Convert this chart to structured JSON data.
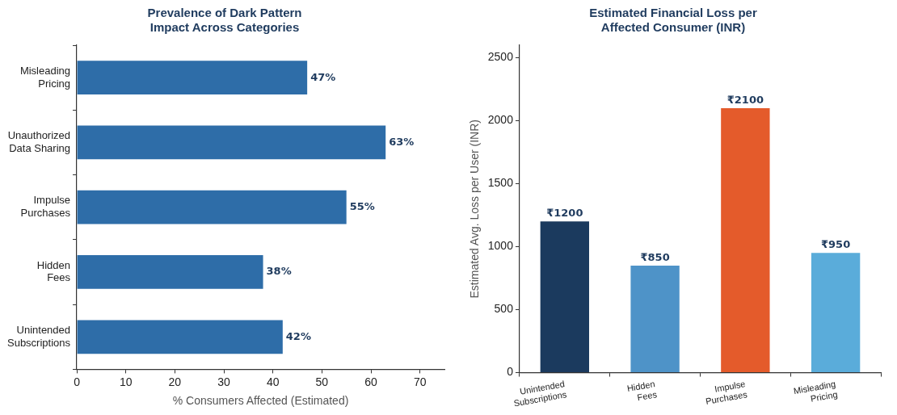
{
  "chart_data": [
    {
      "type": "bar",
      "orientation": "horizontal",
      "title": "Prevalence of Dark Pattern\nImpact Across Categories",
      "xlabel": "% Consumers Affected (Estimated)",
      "categories": [
        "Misleading\nPricing",
        "Unauthorized\nData Sharing",
        "Impulse\nPurchases",
        "Hidden\nFees",
        "Unintended\nSubscriptions"
      ],
      "values": [
        47,
        63,
        55,
        38,
        42
      ],
      "color": "#2e6da8",
      "value_labels": [
        "47%",
        "63%",
        "55%",
        "38%",
        "42%"
      ],
      "xlim": [
        0,
        75
      ],
      "xticks": [
        0,
        10,
        20,
        30,
        40,
        50,
        60,
        70
      ],
      "grid": false,
      "legend": false
    },
    {
      "type": "bar",
      "title": "Estimated Financial Loss per\nAffected Consumer (INR)",
      "ylabel": "Estimated Avg. Loss per User (INR)",
      "categories": [
        "Unintended\nSubscriptions",
        "Hidden\nFees",
        "Impulse\nPurchases",
        "Misleading\nPricing"
      ],
      "values": [
        1200,
        850,
        2100,
        950
      ],
      "colors": [
        "#1b3a5e",
        "#4e93c8",
        "#e45b2b",
        "#5aacda"
      ],
      "value_labels": [
        "₹1200",
        "₹850",
        "₹2100",
        "₹950"
      ],
      "ylim": [
        0,
        2600
      ],
      "yticks": [
        0,
        500,
        1000,
        1500,
        2000,
        2500
      ],
      "grid": false,
      "legend": false
    }
  ]
}
